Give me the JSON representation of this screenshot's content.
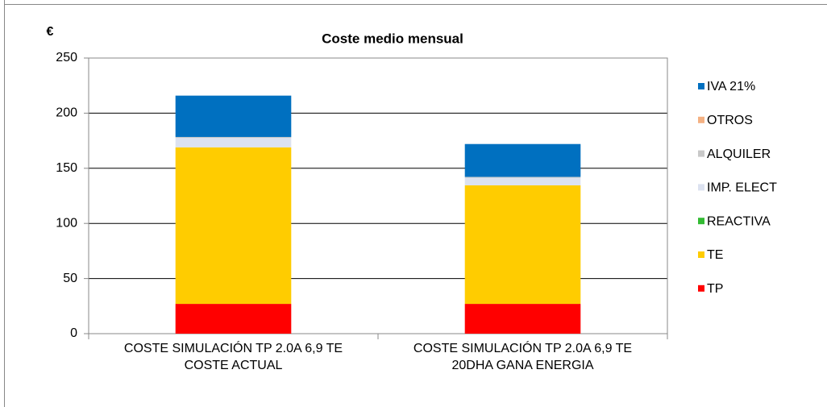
{
  "chart_data": {
    "type": "bar",
    "stacked": true,
    "title": "Coste medio mensual",
    "y_label": "€",
    "categories": [
      "COSTE SIMULACIÓN TP 2.0A 6,9 TE COSTE ACTUAL",
      "COSTE SIMULACIÓN TP 2.0A 6,9 TE 20DHA GANA ENERGIA"
    ],
    "series": [
      {
        "name": "TP",
        "color": "#ff0000",
        "values": [
          27,
          27
        ]
      },
      {
        "name": "TE",
        "color": "#ffcc00",
        "values": [
          142,
          107.5
        ]
      },
      {
        "name": "REACTIVA",
        "color": "#33bb33",
        "values": [
          0,
          0
        ]
      },
      {
        "name": "IMP. ELECT",
        "color": "#dce2f0",
        "values": [
          8.6,
          6.9
        ]
      },
      {
        "name": "ALQUILER",
        "color": "#c8c8c8",
        "values": [
          0.8,
          0.8
        ]
      },
      {
        "name": "OTROS",
        "color": "#f4b183",
        "values": [
          0,
          0
        ]
      },
      {
        "name": "IVA 21%",
        "color": "#0070c0",
        "values": [
          37.5,
          29.8
        ]
      }
    ],
    "ylim": [
      0,
      250
    ],
    "yticks": [
      0,
      50,
      100,
      150,
      200,
      250
    ],
    "grid": true,
    "legend": "right"
  }
}
